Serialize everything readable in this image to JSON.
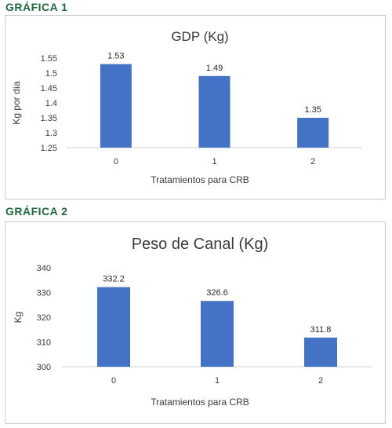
{
  "headings": {
    "chart1": "GRÁFICA 1",
    "chart2": "GRÁFICA 2"
  },
  "chart_data": [
    {
      "type": "bar",
      "title": "GDP (Kg)",
      "xlabel": "Tratamientos para CRB",
      "ylabel": "Kg por día",
      "categories": [
        "0",
        "1",
        "2"
      ],
      "values": [
        1.53,
        1.49,
        1.35
      ],
      "data_labels": [
        "1.53",
        "1.49",
        "1.35"
      ],
      "yticks": [
        "1.25",
        "1.3",
        "1.35",
        "1.4",
        "1.45",
        "1.5",
        "1.55"
      ],
      "ylim": [
        1.25,
        1.55
      ],
      "grid": false,
      "bar_color": "#4472c4"
    },
    {
      "type": "bar",
      "title": "Peso de Canal (Kg)",
      "xlabel": "Tratamientos para CRB",
      "ylabel": "Kg",
      "categories": [
        "0",
        "1",
        "2"
      ],
      "values": [
        332.2,
        326.6,
        311.8
      ],
      "data_labels": [
        "332.2",
        "326.6",
        "311.8"
      ],
      "yticks": [
        "300",
        "310",
        "320",
        "330",
        "340"
      ],
      "ylim": [
        300,
        340
      ],
      "grid": false,
      "bar_color": "#4472c4"
    }
  ]
}
